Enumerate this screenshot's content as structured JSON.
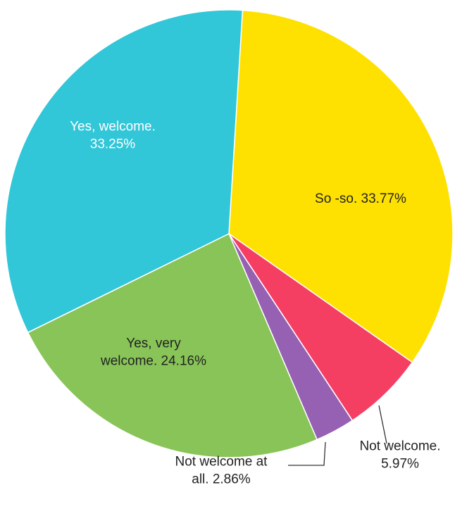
{
  "chart_data": {
    "type": "pie",
    "title": "",
    "slices": [
      {
        "label_lines": [
          "So -so. 33.77%"
        ],
        "value": 33.77,
        "color": "#FEE100",
        "label_color": "#222222"
      },
      {
        "label_lines": [
          "Not welcome.",
          "5.97%"
        ],
        "value": 5.97,
        "color": "#F43F63",
        "label_color": "#222222"
      },
      {
        "label_lines": [
          "Not welcome at",
          "all. 2.86%"
        ],
        "value": 2.86,
        "color": "#9660B3",
        "label_color": "#222222"
      },
      {
        "label_lines": [
          "Yes, very",
          "welcome. 24.16%"
        ],
        "value": 24.16,
        "color": "#88C458",
        "label_color": "#222222"
      },
      {
        "label_lines": [
          "Yes, welcome.",
          "33.25%"
        ],
        "value": 33.25,
        "color": "#31C6D8",
        "label_color": "#ffffff"
      }
    ]
  }
}
